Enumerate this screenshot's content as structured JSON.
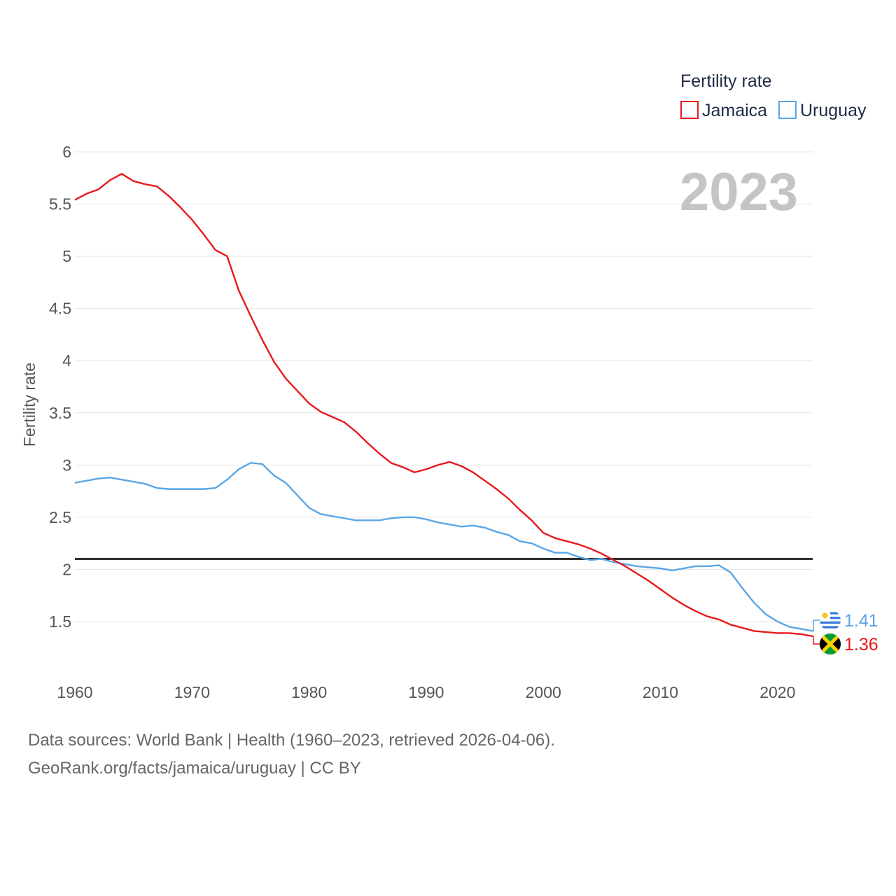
{
  "chart_data": {
    "type": "line",
    "ylabel": "Fertility rate",
    "legend_title": "Fertility rate",
    "year_label": "2023",
    "x": [
      1960,
      1961,
      1962,
      1963,
      1964,
      1965,
      1966,
      1967,
      1968,
      1969,
      1970,
      1971,
      1972,
      1973,
      1974,
      1975,
      1976,
      1977,
      1978,
      1979,
      1980,
      1981,
      1982,
      1983,
      1984,
      1985,
      1986,
      1987,
      1988,
      1989,
      1990,
      1991,
      1992,
      1993,
      1994,
      1995,
      1996,
      1997,
      1998,
      1999,
      2000,
      2001,
      2002,
      2003,
      2004,
      2005,
      2006,
      2007,
      2008,
      2009,
      2010,
      2011,
      2012,
      2013,
      2014,
      2015,
      2016,
      2017,
      2018,
      2019,
      2020,
      2021,
      2022,
      2023
    ],
    "xlim": [
      1960,
      2023
    ],
    "ylim": [
      1.0,
      6.15
    ],
    "yticks": [
      1.5,
      2,
      2.5,
      3,
      3.5,
      4,
      4.5,
      5,
      5.5,
      6
    ],
    "ytick_labels": [
      "1.5",
      "2",
      "2.5",
      "3",
      "3.5",
      "4",
      "4.5",
      "5",
      "5.5",
      "6"
    ],
    "xticks": [
      1960,
      1970,
      1980,
      1990,
      2000,
      2010,
      2020
    ],
    "xtick_labels": [
      "1960",
      "1970",
      "1980",
      "1990",
      "2000",
      "2010",
      "2020"
    ],
    "reference_line": {
      "value": 2.1,
      "color": "#000000"
    },
    "series": [
      {
        "name": "Jamaica",
        "color": "#e8191c",
        "end_label": "1.36",
        "values": [
          5.54,
          5.6,
          5.64,
          5.73,
          5.79,
          5.72,
          5.69,
          5.67,
          5.58,
          5.47,
          5.35,
          5.21,
          5.06,
          5.0,
          4.67,
          4.43,
          4.2,
          3.99,
          3.83,
          3.71,
          3.59,
          3.51,
          3.46,
          3.41,
          3.32,
          3.21,
          3.11,
          3.02,
          2.98,
          2.93,
          2.96,
          3.0,
          3.03,
          2.99,
          2.93,
          2.85,
          2.77,
          2.68,
          2.57,
          2.47,
          2.35,
          2.3,
          2.27,
          2.24,
          2.2,
          2.15,
          2.09,
          2.03,
          1.96,
          1.89,
          1.81,
          1.73,
          1.66,
          1.6,
          1.55,
          1.52,
          1.47,
          1.44,
          1.41,
          1.4,
          1.39,
          1.39,
          1.38,
          1.36
        ]
      },
      {
        "name": "Uruguay",
        "color": "#5aa6e6",
        "end_label": "1.41",
        "values": [
          2.83,
          2.85,
          2.87,
          2.88,
          2.86,
          2.84,
          2.82,
          2.78,
          2.77,
          2.77,
          2.77,
          2.77,
          2.78,
          2.86,
          2.96,
          3.02,
          3.01,
          2.9,
          2.83,
          2.71,
          2.59,
          2.53,
          2.51,
          2.49,
          2.47,
          2.47,
          2.47,
          2.49,
          2.5,
          2.5,
          2.48,
          2.45,
          2.43,
          2.41,
          2.42,
          2.4,
          2.36,
          2.33,
          2.27,
          2.25,
          2.2,
          2.16,
          2.16,
          2.12,
          2.09,
          2.1,
          2.07,
          2.05,
          2.03,
          2.02,
          2.01,
          1.99,
          2.01,
          2.03,
          2.03,
          2.04,
          1.97,
          1.82,
          1.68,
          1.57,
          1.5,
          1.45,
          1.43,
          1.41
        ]
      }
    ]
  },
  "sources": {
    "line1": "Data sources: World Bank | Health (1960–2023, retrieved 2026-04-06).",
    "line2": "GeoRank.org/facts/jamaica/uruguay | CC BY"
  }
}
